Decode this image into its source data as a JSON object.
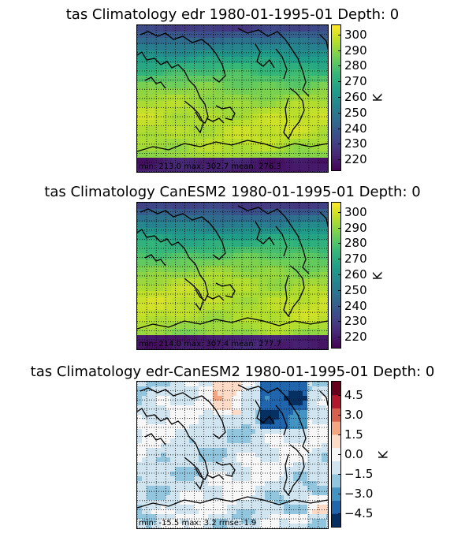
{
  "colors": {
    "viridis_stops": [
      "#440154",
      "#482878",
      "#3e4989",
      "#31688e",
      "#26828e",
      "#1f9e89",
      "#35b779",
      "#6ece58",
      "#b5de2b",
      "#fde725"
    ],
    "rdbu_stops": [
      "#053061",
      "#2166ac",
      "#4393c3",
      "#92c5de",
      "#d1e5f0",
      "#f7f7f7",
      "#fddbc7",
      "#f4a582",
      "#d6604d",
      "#b2182b",
      "#67001f"
    ],
    "coastline": "#000000",
    "grid": "#000000"
  },
  "chart_data": [
    {
      "type": "heatmap",
      "title": "tas Climatology edr 1980-01-1995-01 Depth: 0",
      "stats_text": "min: 213.0  max: 302.7  mean: 276.3",
      "colorbar_label": "K",
      "colormap": "viridis",
      "vmin": 213.0,
      "vmax": 306.0,
      "colorbar_ticks": [
        "220",
        "230",
        "240",
        "250",
        "260",
        "270",
        "280",
        "290",
        "300"
      ],
      "grid": true,
      "stats": {
        "min": 213.0,
        "max": 302.7,
        "mean": 276.3
      }
    },
    {
      "type": "heatmap",
      "title": "tas Climatology CanESM2 1980-01-1995-01 Depth: 0",
      "stats_text": "min: 214.0  max: 307.4  mean: 277.7",
      "colorbar_label": "K",
      "colormap": "viridis",
      "vmin": 213.0,
      "vmax": 306.0,
      "colorbar_ticks": [
        "220",
        "230",
        "240",
        "250",
        "260",
        "270",
        "280",
        "290",
        "300"
      ],
      "grid": true,
      "stats": {
        "min": 214.0,
        "max": 307.4,
        "mean": 277.7
      }
    },
    {
      "type": "heatmap",
      "title": "tas Climatology edr-CanESM2 1980-01-1995-01 Depth: 0",
      "stats_text": "min: -15.5  max: 3.2  rmse: 1.9",
      "colorbar_label": "K",
      "colormap": "RdBu_r",
      "vmin": -5.5,
      "vmax": 5.5,
      "colorbar_ticks": [
        "−4.5",
        "−3.0",
        "−1.5",
        "0.0",
        "1.5",
        "3.0",
        "4.5"
      ],
      "grid": true,
      "stats": {
        "min": -15.5,
        "max": 3.2,
        "rmse": 1.9
      }
    }
  ]
}
